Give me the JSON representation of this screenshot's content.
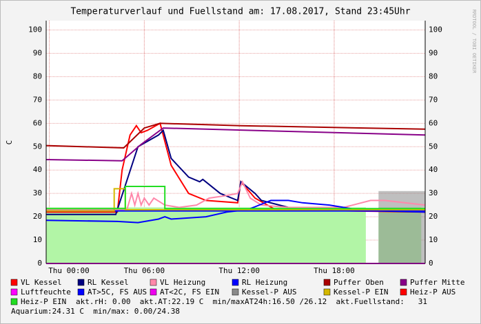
{
  "chart_data": {
    "type": "line",
    "title": "Temperaturverlauf und Fuellstand am: 17.08.2017, Stand 23:45Uhr",
    "y_label": "C",
    "watermark": "RRDTOOL / TOBI OETIKER",
    "xlim": [
      -0.2,
      23.75
    ],
    "xticks": [
      {
        "value": 0,
        "label": "Thu 00:00"
      },
      {
        "value": 6,
        "label": "Thu 06:00"
      },
      {
        "value": 12,
        "label": "Thu 12:00"
      },
      {
        "value": 18,
        "label": "Thu 18:00"
      }
    ],
    "ylim": [
      0,
      104
    ],
    "yticks": [
      0,
      10,
      20,
      30,
      40,
      50,
      60,
      70,
      80,
      90,
      100
    ],
    "grid": true,
    "series": [
      {
        "color": "#b2f5a6",
        "fill": true,
        "x": [
          -0.2,
          20.0,
          20.4,
          20.8,
          23.5
        ],
        "values": [
          24,
          24,
          null,
          24,
          24
        ]
      },
      {
        "name": "VL Kessel",
        "color": "#ff0000",
        "x": [
          -0.2,
          4.3,
          4.6,
          5.1,
          5.5,
          5.8,
          6.2,
          7.0,
          7.7,
          8.8,
          9.9,
          11.9,
          12.1,
          13.0,
          14.3,
          23.75
        ],
        "values": [
          22,
          22,
          40,
          55,
          59,
          56,
          57,
          60,
          42,
          30,
          27,
          26,
          35,
          28,
          23,
          22
        ]
      },
      {
        "name": "RL Kessel",
        "color": "#000080",
        "x": [
          -0.2,
          4.2,
          5.6,
          6.9,
          7.2,
          7.7,
          8.8,
          9.5,
          9.7,
          10.8,
          11.9,
          12.1,
          13.0,
          13.4,
          15.1,
          17.7,
          23.75
        ],
        "values": [
          21,
          21,
          50,
          55,
          57,
          45,
          37,
          35,
          36,
          30,
          27,
          35,
          30,
          27,
          24,
          23,
          22
        ]
      },
      {
        "name": "VL Heizung",
        "color": "#ff88aa",
        "x": [
          -0.2,
          4.9,
          5.2,
          5.4,
          5.6,
          5.8,
          6.0,
          6.3,
          6.6,
          7.3,
          8.2,
          9.3,
          10.1,
          11.1,
          11.9,
          12.2,
          12.7,
          13.4,
          15.1,
          18.6,
          20.3,
          21.2,
          23.75
        ],
        "values": [
          23,
          23,
          30,
          25,
          30,
          25,
          28,
          25,
          28,
          25,
          24,
          25,
          28,
          29,
          30,
          35,
          28,
          25,
          24,
          24,
          27,
          27,
          25
        ]
      },
      {
        "name": "RL Heizung",
        "color": "#0000ff",
        "x": [
          -0.2,
          4.3,
          5.6,
          6.9,
          7.3,
          7.7,
          9.9,
          11.2,
          12.5,
          12.9,
          14.0,
          15.1,
          16.0,
          17.7,
          18.6,
          19.5,
          23.75
        ],
        "values": [
          18.5,
          18,
          17.5,
          19,
          20,
          19,
          20,
          22,
          23,
          24,
          27,
          27,
          26,
          25,
          24,
          23,
          22
        ]
      },
      {
        "name": "Puffer Oben",
        "color": "#aa0000",
        "x": [
          -0.2,
          4.7,
          6.0,
          7.0,
          12.1,
          23.75
        ],
        "values": [
          50.5,
          49.5,
          58,
          60,
          59,
          57.5
        ]
      },
      {
        "name": "Puffer Mitte",
        "color": "#880088",
        "x": [
          -0.2,
          4.6,
          5.8,
          7.2,
          23.75
        ],
        "values": [
          44.5,
          44,
          51,
          58,
          55
        ]
      },
      {
        "name": "Luftfeuchte",
        "color": "#ff00ff",
        "x": [
          -0.2,
          23.75
        ],
        "values": [
          0,
          0
        ]
      },
      {
        "name": "AT>5C, FS AUS",
        "color": "#0000ff",
        "x": [
          -0.2,
          23.75
        ],
        "values": [
          22.5,
          22.5
        ]
      },
      {
        "name": "AT<2C, FS EIN",
        "color": "#ee00ee",
        "x": [],
        "values": []
      },
      {
        "name": "Kessel-P AUS",
        "color": "#8a8a8a",
        "fill": true,
        "x": [
          20.8,
          23.75
        ],
        "values": [
          31,
          31
        ]
      },
      {
        "name": "Kessel-P EIN",
        "color": "#d4b800",
        "x": [
          -0.2,
          4.1,
          4.1,
          4.8,
          4.8,
          23.75
        ],
        "values": [
          22.5,
          22.5,
          32,
          32,
          23,
          23
        ]
      },
      {
        "name": "Heiz-P AUS",
        "color": "#ff0000",
        "x": [],
        "values": []
      },
      {
        "name": "Heiz-P EIN",
        "color": "#22dd22",
        "x": [
          -0.2,
          4.8,
          4.8,
          7.3,
          7.3,
          23.75
        ],
        "values": [
          23.5,
          23.5,
          33,
          33,
          23.5,
          23.5
        ]
      }
    ],
    "stats": [
      "akt.rH: 0.00  akt.AT:22.19 C  min/maxAT24h:16.50 /26.12  akt.Fuellstand:   31",
      "Aquarium:24.31 C  min/max: 0.00/24.38"
    ]
  }
}
